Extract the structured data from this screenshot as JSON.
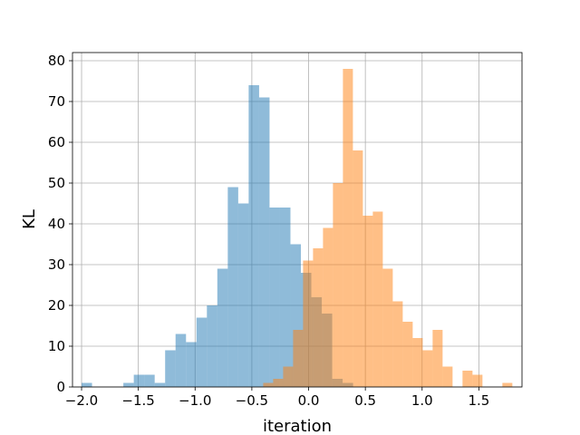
{
  "chart_data": {
    "type": "bar",
    "subtype": "overlaid-histogram",
    "title": "",
    "xlabel": "iteration",
    "ylabel": "KL",
    "xlim": [
      -2.08,
      1.88
    ],
    "ylim": [
      0,
      82
    ],
    "grid": true,
    "legend": "none",
    "xticks": [
      -2.0,
      -1.5,
      -1.0,
      -0.5,
      0.0,
      0.5,
      1.0,
      1.5
    ],
    "xtick_labels": [
      "−2.0",
      "−1.5",
      "−1.0",
      "−0.5",
      "0.0",
      "0.5",
      "1.0",
      "1.5"
    ],
    "yticks": [
      0,
      10,
      20,
      30,
      40,
      50,
      60,
      70,
      80
    ],
    "ytick_labels": [
      "0",
      "10",
      "20",
      "30",
      "40",
      "50",
      "60",
      "70",
      "80"
    ],
    "series": [
      {
        "color": "#1f77b4",
        "alpha": 0.5,
        "bin_start": -2.0,
        "bin_width": 0.092,
        "counts": [
          1,
          0,
          0,
          0,
          1,
          3,
          3,
          1,
          9,
          13,
          11,
          17,
          20,
          29,
          49,
          45,
          74,
          71,
          44,
          44,
          35,
          28,
          22,
          18,
          2,
          1
        ]
      },
      {
        "color": "#ff7f0e",
        "alpha": 0.5,
        "bin_start": -0.4,
        "bin_width": 0.0878,
        "counts": [
          1,
          2,
          5,
          14,
          31,
          34,
          39,
          50,
          78,
          58,
          42,
          43,
          29,
          21,
          16,
          12,
          9,
          14,
          5,
          0,
          4,
          3,
          0,
          0,
          1
        ]
      }
    ]
  }
}
